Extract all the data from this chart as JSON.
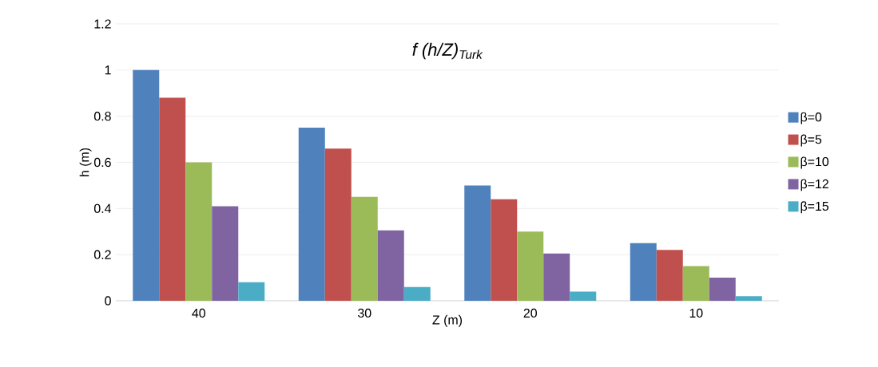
{
  "chart_data": {
    "type": "bar",
    "title": "f (h/Z)$_{Turk}$",
    "xlabel": "Z (m)",
    "ylabel": "h (m)",
    "categories": [
      "40",
      "30",
      "20",
      "10"
    ],
    "series": [
      {
        "name": "β=0",
        "color": "#4f81bd",
        "values": [
          1,
          0.75,
          0.5,
          0.25
        ]
      },
      {
        "name": "β=5",
        "color": "#c0504d",
        "values": [
          0.88,
          0.66,
          0.44,
          0.22
        ]
      },
      {
        "name": "β=10",
        "color": "#9bbb59",
        "values": [
          0.6,
          0.45,
          0.3,
          0.15
        ]
      },
      {
        "name": "β=12",
        "color": "#8064a2",
        "values": [
          0.41,
          0.305,
          0.205,
          0.1
        ]
      },
      {
        "name": "β=15",
        "color": "#4bacc6",
        "values": [
          0.08,
          0.06,
          0.04,
          0.02
        ]
      }
    ],
    "ylim": [
      0,
      1.2
    ],
    "yticks": [
      0,
      0.2,
      0.4,
      0.6,
      0.8,
      1,
      1.2
    ],
    "grid": "y",
    "legend": "right"
  }
}
